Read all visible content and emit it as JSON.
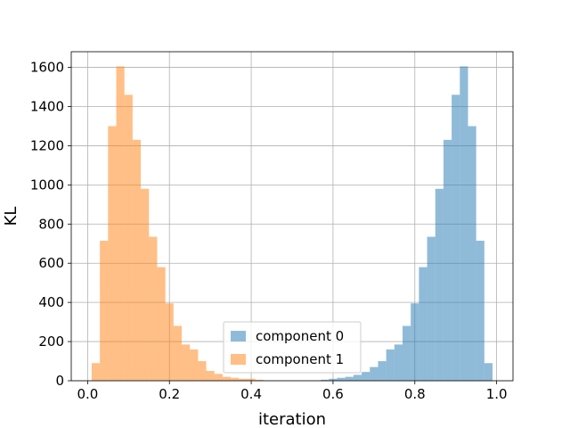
{
  "chart_data": {
    "type": "bar",
    "xlabel": "iteration",
    "ylabel": "KL",
    "xlim": [
      -0.04,
      1.04
    ],
    "ylim": [
      0,
      1680
    ],
    "x_ticks": [
      0.0,
      0.2,
      0.4,
      0.6,
      0.8,
      1.0
    ],
    "x_tick_labels": [
      "0.0",
      "0.2",
      "0.4",
      "0.6",
      "0.8",
      "1.0"
    ],
    "y_ticks": [
      0,
      200,
      400,
      600,
      800,
      1000,
      1200,
      1400,
      1600
    ],
    "y_tick_labels": [
      "0",
      "200",
      "400",
      "600",
      "800",
      "1000",
      "1200",
      "1400",
      "1600"
    ],
    "grid": true,
    "legend_placement": "lower center",
    "bin_width": 0.02,
    "series": [
      {
        "name": "component 0",
        "color": "#1f77b4",
        "alpha": 0.5,
        "bins": [
          {
            "x0": 0.57,
            "x1": 0.59,
            "count": 5
          },
          {
            "x0": 0.59,
            "x1": 0.61,
            "count": 10
          },
          {
            "x0": 0.61,
            "x1": 0.63,
            "count": 15
          },
          {
            "x0": 0.63,
            "x1": 0.65,
            "count": 20
          },
          {
            "x0": 0.65,
            "x1": 0.67,
            "count": 30
          },
          {
            "x0": 0.67,
            "x1": 0.69,
            "count": 45
          },
          {
            "x0": 0.69,
            "x1": 0.71,
            "count": 70
          },
          {
            "x0": 0.71,
            "x1": 0.73,
            "count": 100
          },
          {
            "x0": 0.73,
            "x1": 0.75,
            "count": 160
          },
          {
            "x0": 0.75,
            "x1": 0.77,
            "count": 185
          },
          {
            "x0": 0.77,
            "x1": 0.79,
            "count": 280
          },
          {
            "x0": 0.79,
            "x1": 0.81,
            "count": 395
          },
          {
            "x0": 0.81,
            "x1": 0.83,
            "count": 580
          },
          {
            "x0": 0.83,
            "x1": 0.85,
            "count": 735
          },
          {
            "x0": 0.85,
            "x1": 0.87,
            "count": 980
          },
          {
            "x0": 0.87,
            "x1": 0.89,
            "count": 1230
          },
          {
            "x0": 0.89,
            "x1": 0.91,
            "count": 1460
          },
          {
            "x0": 0.91,
            "x1": 0.93,
            "count": 1605
          },
          {
            "x0": 0.93,
            "x1": 0.95,
            "count": 1300
          },
          {
            "x0": 0.95,
            "x1": 0.97,
            "count": 715
          },
          {
            "x0": 0.97,
            "x1": 0.99,
            "count": 90
          }
        ]
      },
      {
        "name": "component 1",
        "color": "#ff7f0e",
        "alpha": 0.5,
        "bins": [
          {
            "x0": 0.01,
            "x1": 0.03,
            "count": 90
          },
          {
            "x0": 0.03,
            "x1": 0.05,
            "count": 715
          },
          {
            "x0": 0.05,
            "x1": 0.07,
            "count": 1300
          },
          {
            "x0": 0.07,
            "x1": 0.09,
            "count": 1605
          },
          {
            "x0": 0.09,
            "x1": 0.11,
            "count": 1460
          },
          {
            "x0": 0.11,
            "x1": 0.13,
            "count": 1230
          },
          {
            "x0": 0.13,
            "x1": 0.15,
            "count": 980
          },
          {
            "x0": 0.15,
            "x1": 0.17,
            "count": 735
          },
          {
            "x0": 0.17,
            "x1": 0.19,
            "count": 580
          },
          {
            "x0": 0.19,
            "x1": 0.21,
            "count": 395
          },
          {
            "x0": 0.21,
            "x1": 0.23,
            "count": 280
          },
          {
            "x0": 0.23,
            "x1": 0.25,
            "count": 185
          },
          {
            "x0": 0.25,
            "x1": 0.27,
            "count": 160
          },
          {
            "x0": 0.27,
            "x1": 0.29,
            "count": 100
          },
          {
            "x0": 0.29,
            "x1": 0.31,
            "count": 50
          },
          {
            "x0": 0.31,
            "x1": 0.33,
            "count": 35
          },
          {
            "x0": 0.33,
            "x1": 0.35,
            "count": 20
          },
          {
            "x0": 0.35,
            "x1": 0.37,
            "count": 15
          },
          {
            "x0": 0.37,
            "x1": 0.39,
            "count": 10
          },
          {
            "x0": 0.39,
            "x1": 0.41,
            "count": 10
          },
          {
            "x0": 0.41,
            "x1": 0.43,
            "count": 5
          }
        ]
      }
    ]
  }
}
